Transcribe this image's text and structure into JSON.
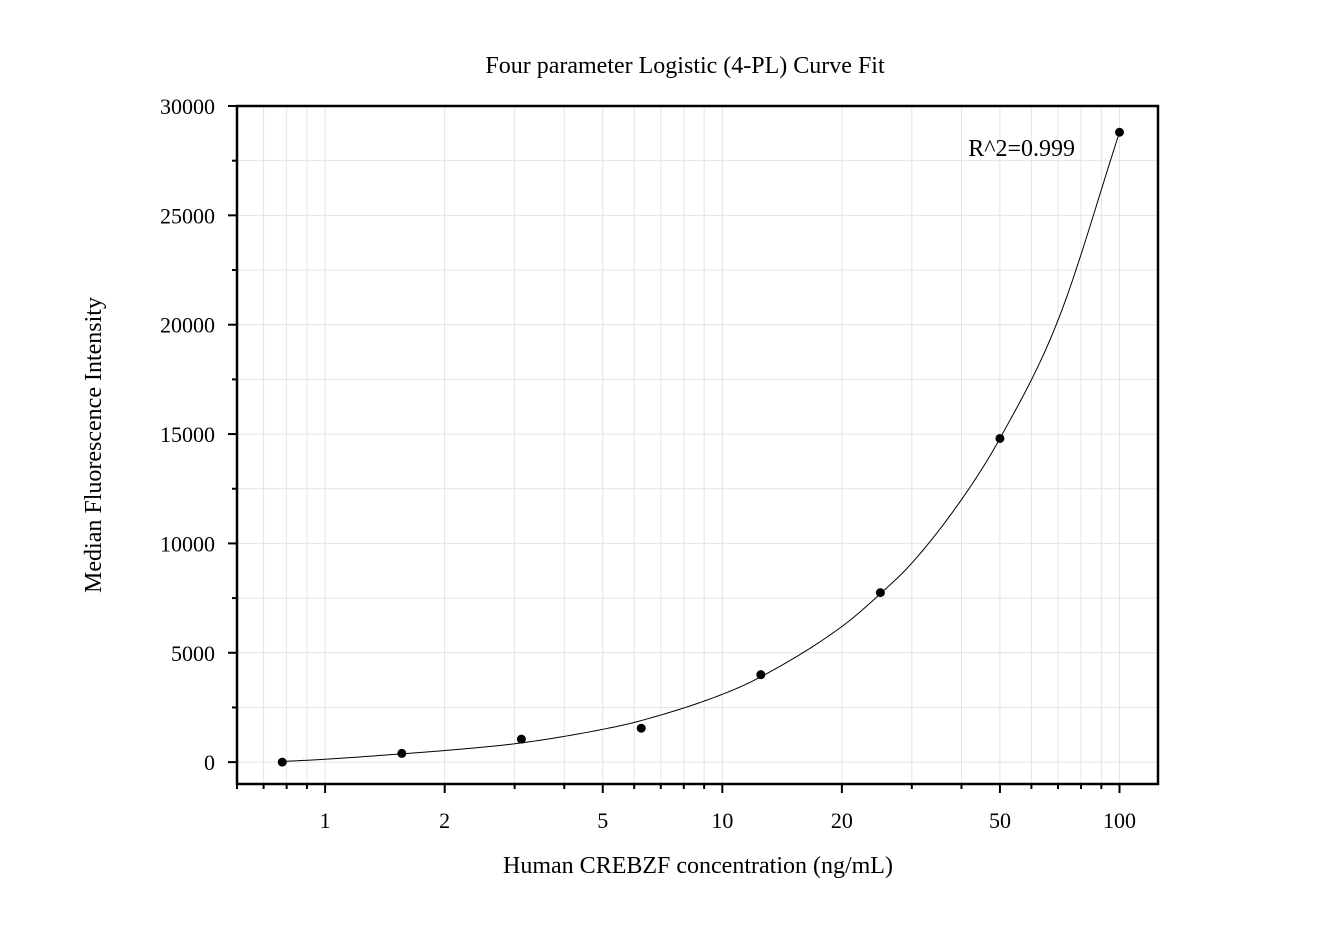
{
  "chart_data": {
    "type": "scatter",
    "title": "Four parameter Logistic (4-PL) Curve Fit",
    "xlabel": "Human CREBZF concentration (ng/mL)",
    "ylabel": "Median Fluorescence Intensity",
    "x_scale": "log",
    "xlim": [
      0.6,
      125
    ],
    "ylim": [
      -1000,
      30000
    ],
    "x_ticks": [
      1,
      2,
      5,
      10,
      20,
      50,
      100
    ],
    "y_ticks": [
      0,
      5000,
      10000,
      15000,
      20000,
      25000,
      30000
    ],
    "grid": true,
    "series": [
      {
        "x": [
          0.78,
          1.56,
          3.12,
          6.25,
          12.5,
          25,
          50,
          100
        ],
        "y": [
          0,
          400,
          1050,
          1550,
          4000,
          7750,
          14800,
          28800
        ]
      }
    ],
    "fit_curve": {
      "model": "4PL",
      "x": [
        0.78,
        1,
        1.56,
        2,
        3.12,
        5,
        6.25,
        10,
        12.5,
        20,
        25,
        30,
        40,
        50,
        70,
        100
      ],
      "y": [
        30,
        130,
        380,
        530,
        880,
        1500,
        1900,
        3100,
        3900,
        6200,
        7700,
        9100,
        12000,
        14800,
        20200,
        28800
      ]
    },
    "annotations": [
      {
        "text": "R^2=0.999"
      }
    ]
  }
}
